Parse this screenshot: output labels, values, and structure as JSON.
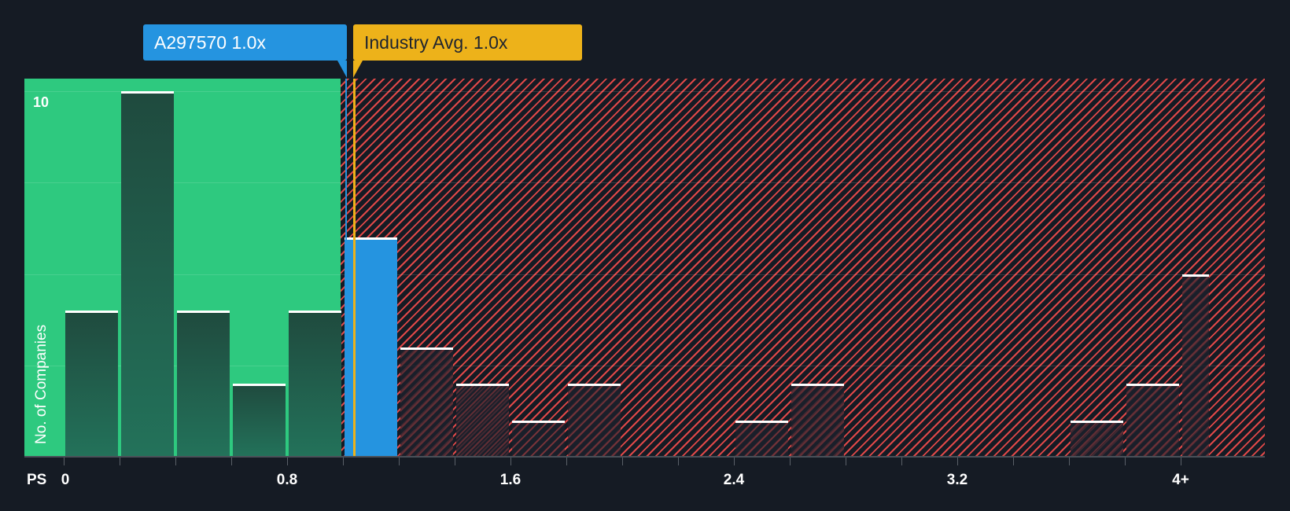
{
  "chart_data": {
    "type": "bar",
    "title": "",
    "xlabel": "PS",
    "ylabel": "No. of Companies",
    "ylim": [
      0,
      10
    ],
    "y_tick_labels": [
      "10"
    ],
    "x_tick_labels": [
      "0",
      "0.8",
      "1.6",
      "2.4",
      "3.2",
      "4+"
    ],
    "bin_width": 0.2,
    "bins": [
      "0-0.2",
      "0.2-0.4",
      "0.4-0.6",
      "0.6-0.8",
      "0.8-1.0",
      "1.0-1.2",
      "1.2-1.4",
      "1.4-1.6",
      "1.6-1.8",
      "1.8-2.0",
      "2.0-2.2",
      "2.2-2.4",
      "2.4-2.6",
      "2.6-2.8",
      "2.8-3.0",
      "3.0-3.2",
      "3.2-3.4",
      "3.4-3.6",
      "3.6-3.8",
      "3.8-4.0",
      "4+"
    ],
    "values": [
      4,
      10,
      4,
      2,
      4,
      6,
      3,
      2,
      1,
      2,
      0,
      0,
      1,
      2,
      0,
      0,
      0,
      0,
      1,
      2,
      5
    ],
    "highlight_bin_index": 5,
    "company": {
      "label": "A297570",
      "value": 1.0,
      "display": "A297570 1.0x"
    },
    "industry_avg": {
      "label": "Industry Avg.",
      "value": 1.0,
      "display": "Industry Avg. 1.0x"
    },
    "zones": {
      "undervalued_below": 1.0,
      "overvalued_above": 1.0
    },
    "grid": true,
    "legend_position": "none"
  },
  "colors": {
    "background": "#151b24",
    "undervalued_zone": "#2ec97f",
    "overvalued_hatch": "#e04848",
    "company": "#2594e0",
    "industry": "#edb21a",
    "bar_cap": "#ffffff"
  },
  "labels": {
    "company_callout": "A297570 1.0x",
    "industry_callout": "Industry Avg. 1.0x",
    "y_axis_title": "No. of Companies",
    "y_max": "10",
    "x_axis_prefix": "PS"
  }
}
